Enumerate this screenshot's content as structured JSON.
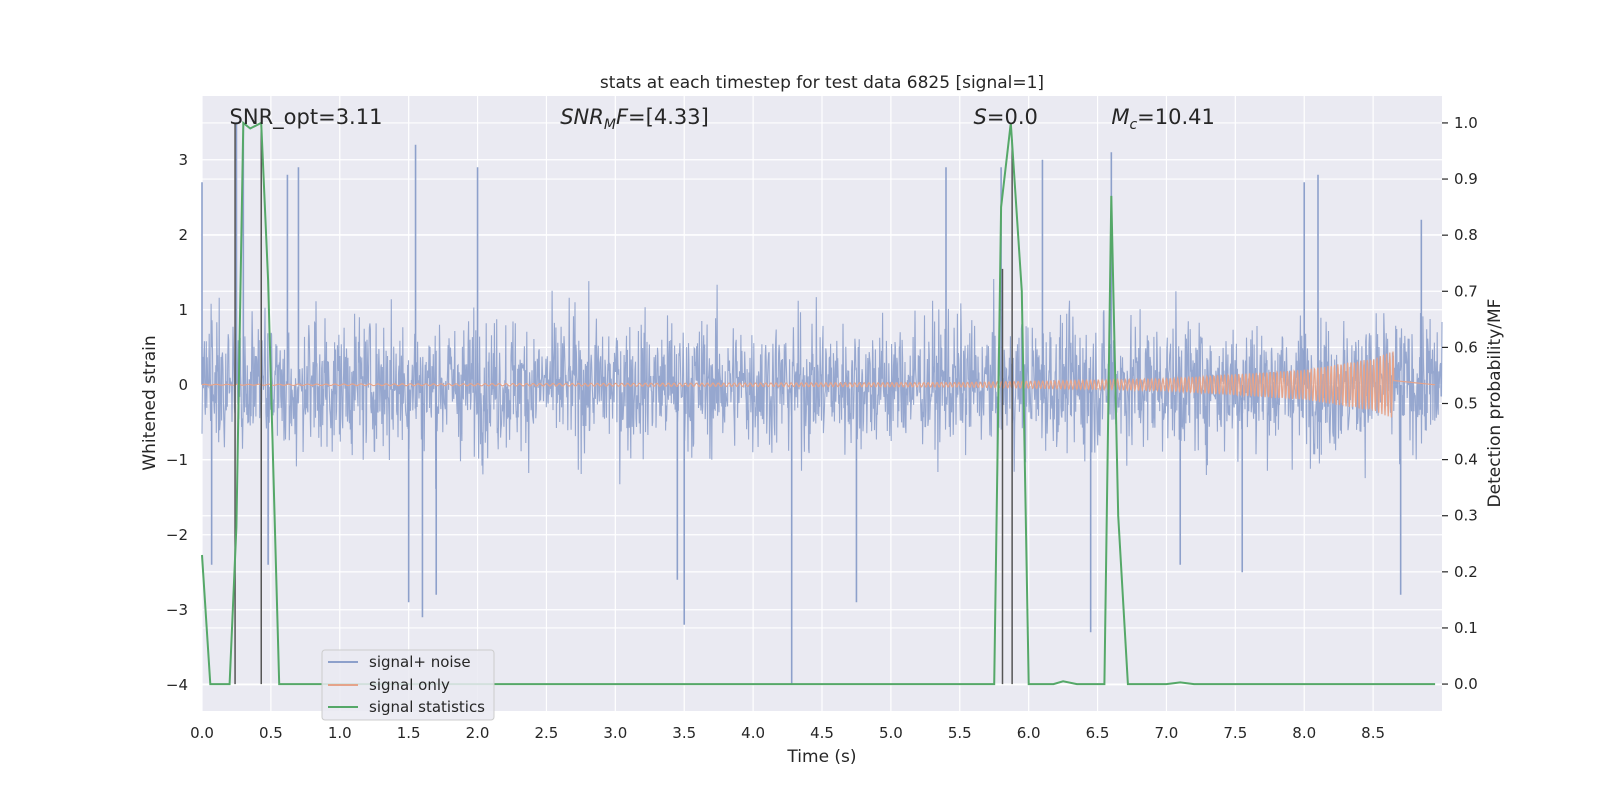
{
  "chart_data": {
    "type": "line",
    "title": "stats at each timestep for test data 6825 [signal=1]",
    "xlabel": "Time (s)",
    "ylabel": "Whitened strain",
    "y2label": "Detection probability/MF",
    "xlim": [
      0.0,
      9.0
    ],
    "ylim": [
      -4.35,
      3.85
    ],
    "y2lim": [
      -0.048,
      1.048
    ],
    "x_ticks": [
      "0.0",
      "0.5",
      "1.0",
      "1.5",
      "2.0",
      "2.5",
      "3.0",
      "3.5",
      "4.0",
      "4.5",
      "5.0",
      "5.5",
      "6.0",
      "6.5",
      "7.0",
      "7.5",
      "8.0",
      "8.5"
    ],
    "x_tick_values": [
      0,
      0.5,
      1,
      1.5,
      2,
      2.5,
      3,
      3.5,
      4,
      4.5,
      5,
      5.5,
      6,
      6.5,
      7,
      7.5,
      8,
      8.5
    ],
    "y_ticks": [
      "3",
      "2",
      "1",
      "0",
      "−1",
      "−2",
      "−3",
      "−4"
    ],
    "y_tick_values": [
      3,
      2,
      1,
      0,
      -1,
      -2,
      -3,
      -4
    ],
    "y2_ticks": [
      "1.0",
      "0.9",
      "0.8",
      "0.7",
      "0.6",
      "0.5",
      "0.4",
      "0.3",
      "0.2",
      "0.1",
      "0.0"
    ],
    "y2_tick_values": [
      1.0,
      0.9,
      0.8,
      0.7,
      0.6,
      0.5,
      0.4,
      0.3,
      0.2,
      0.1,
      0.0
    ],
    "grid": true,
    "legend_position": "bottom-left",
    "annotations": [
      {
        "prefix": "SNR_opt",
        "sub": "",
        "suffix": "=3.11",
        "italic": false,
        "x": 0.2
      },
      {
        "prefix": "SNR",
        "sub": "M",
        "suffix": "F=[4.33]",
        "italic": true,
        "x": 2.6
      },
      {
        "prefix": "S",
        "sub": "",
        "suffix": "=0.0",
        "italic": true,
        "x": 5.6
      },
      {
        "prefix": "M",
        "sub": "c",
        "suffix": "=10.41",
        "italic": true,
        "x": 6.6
      }
    ],
    "series": [
      {
        "name": "signal+ noise",
        "color": "#8da0cb",
        "axis": "left",
        "description_type": "noise",
        "x_range": [
          0.0,
          9.0
        ],
        "typical_range": [
          -1.6,
          1.6
        ],
        "spikes": [
          {
            "x": 0.0,
            "y": 2.7
          },
          {
            "x": 0.07,
            "y": -2.4
          },
          {
            "x": 0.25,
            "y": 3.5
          },
          {
            "x": 0.3,
            "y": 3.5
          },
          {
            "x": 0.48,
            "y": -2.4
          },
          {
            "x": 0.62,
            "y": 2.8
          },
          {
            "x": 0.7,
            "y": 2.9
          },
          {
            "x": 1.55,
            "y": 3.2
          },
          {
            "x": 1.6,
            "y": -3.1
          },
          {
            "x": 1.5,
            "y": -2.9
          },
          {
            "x": 1.7,
            "y": -2.8
          },
          {
            "x": 2.0,
            "y": 2.9
          },
          {
            "x": 3.5,
            "y": -3.2
          },
          {
            "x": 3.45,
            "y": -2.6
          },
          {
            "x": 4.28,
            "y": -4.0
          },
          {
            "x": 4.75,
            "y": -2.9
          },
          {
            "x": 5.4,
            "y": 2.9
          },
          {
            "x": 5.8,
            "y": 2.9
          },
          {
            "x": 6.1,
            "y": 3.0
          },
          {
            "x": 6.6,
            "y": 3.1
          },
          {
            "x": 6.45,
            "y": -3.3
          },
          {
            "x": 7.1,
            "y": -2.4
          },
          {
            "x": 7.55,
            "y": -2.5
          },
          {
            "x": 8.0,
            "y": 2.7
          },
          {
            "x": 8.1,
            "y": 2.8
          },
          {
            "x": 8.7,
            "y": -2.8
          },
          {
            "x": 8.85,
            "y": 2.2
          }
        ]
      },
      {
        "name": "signal only",
        "color": "#e5a38a",
        "axis": "left",
        "description_type": "chirp",
        "x_range": [
          0.0,
          8.65
        ],
        "amplitude_at": [
          [
            0.0,
            0.005
          ],
          [
            5.5,
            0.03
          ],
          [
            7.0,
            0.08
          ],
          [
            8.0,
            0.2
          ],
          [
            8.5,
            0.35
          ],
          [
            8.65,
            0.45
          ]
        ]
      },
      {
        "name": "signal statistics",
        "color": "#55a868",
        "axis": "right",
        "x": [
          0.0,
          0.06,
          0.2,
          0.25,
          0.3,
          0.35,
          0.43,
          0.48,
          0.56,
          0.7,
          5.75,
          5.8,
          5.87,
          5.95,
          6.0,
          6.1,
          6.18,
          6.25,
          6.35,
          6.55,
          6.6,
          6.65,
          6.72,
          6.8,
          7.0,
          7.1,
          7.2,
          8.95
        ],
        "y": [
          0.23,
          0.0,
          0.0,
          0.28,
          1.0,
          0.99,
          1.0,
          0.72,
          0.0,
          0.0,
          0.0,
          0.85,
          1.0,
          0.7,
          0.0,
          0.0,
          0.0,
          0.005,
          0.0,
          0.0,
          0.87,
          0.3,
          0.0,
          0.0,
          0.0,
          0.003,
          0.0,
          0.0
        ]
      }
    ],
    "vertical_markers": [
      {
        "x": 0.24,
        "y_top": 1.0,
        "y_bottom": 0.0
      },
      {
        "x": 0.43,
        "y_top": 1.0,
        "y_bottom": 0.0
      },
      {
        "x": 5.81,
        "y_top": 0.74,
        "y_bottom": 0.0
      },
      {
        "x": 5.88,
        "y_top": 0.97,
        "y_bottom": 0.0
      }
    ],
    "vertical_marker_color": "#555555"
  }
}
